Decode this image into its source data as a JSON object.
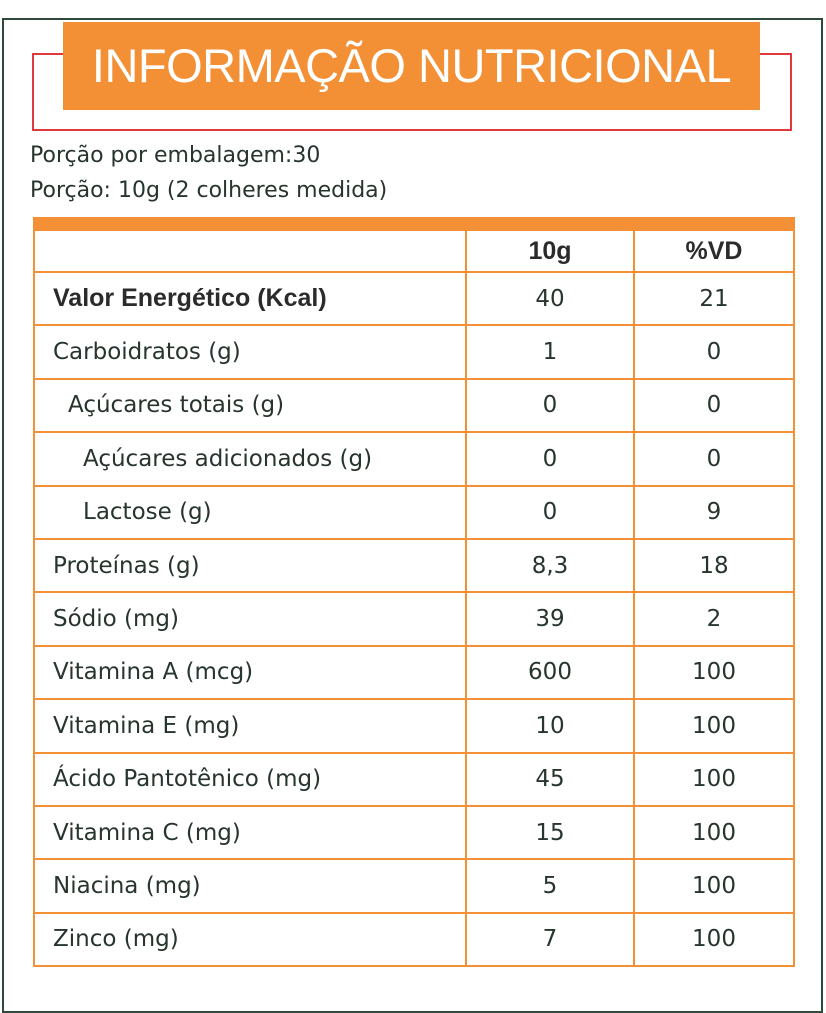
{
  "title": "INFORMAÇÃO NUTRICIONAL",
  "servings_per_package": "Porção por embalagem:30",
  "serving_size": "Porção: 10g (2 colheres medida)",
  "table": {
    "headers": [
      "",
      "10g",
      "%VD"
    ],
    "rows": [
      {
        "name": "Valor Energético (Kcal)",
        "amount": "40",
        "dv": "21"
      },
      {
        "name": "Carboidratos (g)",
        "amount": "1",
        "dv": "0"
      },
      {
        "name": "Açúcares totais (g)",
        "amount": "0",
        "dv": "0"
      },
      {
        "name": "Açúcares adicionados (g)",
        "amount": "0",
        "dv": "0"
      },
      {
        "name": "Lactose (g)",
        "amount": "0",
        "dv": "9"
      },
      {
        "name": "Proteínas (g)",
        "amount": "8,3",
        "dv": "18"
      },
      {
        "name": "Sódio (mg)",
        "amount": "39",
        "dv": "2"
      },
      {
        "name": "Vitamina A (mcg)",
        "amount": "600",
        "dv": "100"
      },
      {
        "name": "Vitamina E (mg)",
        "amount": "10",
        "dv": "100"
      },
      {
        "name": "Ácido Pantotênico (mg)",
        "amount": "45",
        "dv": "100"
      },
      {
        "name": "Vitamina C (mg)",
        "amount": "15",
        "dv": "100"
      },
      {
        "name": "Niacina (mg)",
        "amount": "5",
        "dv": "100"
      },
      {
        "name": "Zinco (mg)",
        "amount": "7",
        "dv": "100"
      }
    ]
  },
  "colors": {
    "accent": "#f38f34",
    "frame": "#2f4a3a",
    "red_box": "#e03a3e",
    "text": "#27352d"
  }
}
